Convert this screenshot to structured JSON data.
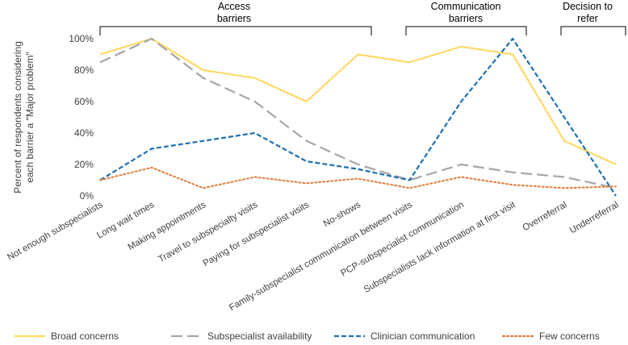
{
  "chart_data": {
    "type": "line",
    "title": "",
    "xlabel": "",
    "ylabel": "Percent of respondents considering each barrier a \"Major problem\"",
    "ylabel_lines": [
      "Percent of respondents considering",
      "each barrier a \"Major  problem\""
    ],
    "ylim": [
      0,
      100
    ],
    "yticks": [
      0,
      20,
      40,
      60,
      80,
      100
    ],
    "ytick_labels": [
      "0%",
      "20%",
      "40%",
      "60%",
      "80%",
      "100%"
    ],
    "grid": false,
    "legend_position": "bottom",
    "categories": [
      "Not enough subspecialists",
      "Long wait times",
      "Making appointments",
      "Travel to subspecialty visits",
      "Paying for subspecialist visits",
      "No-shows",
      "Family-subspecialist communication between visits",
      "PCP-subspecialist communication",
      "Subspecialists lack information at first visit",
      "Overreferral",
      "Underreferral"
    ],
    "groups": [
      {
        "label_lines": [
          "Access",
          "barriers"
        ],
        "start": 0,
        "end": 5
      },
      {
        "label_lines": [
          "Communication",
          "barriers"
        ],
        "start": 6,
        "end": 8
      },
      {
        "label_lines": [
          "Decision to",
          "refer"
        ],
        "start": 9,
        "end": 10
      }
    ],
    "series": [
      {
        "name": "Broad concerns",
        "color": "#FFD966",
        "dash": "solid",
        "values": [
          90,
          100,
          80,
          75,
          60,
          90,
          85,
          95,
          90,
          35,
          20
        ]
      },
      {
        "name": "Subspecialist availability",
        "color": "#A6A6A6",
        "dash": "longdash",
        "values": [
          85,
          100,
          75,
          60,
          35,
          20,
          10,
          20,
          15,
          12,
          5
        ]
      },
      {
        "name": "Clinician communication",
        "color": "#1F6FB2",
        "dash": "shortdash",
        "values": [
          10,
          30,
          35,
          40,
          22,
          17,
          10,
          60,
          100,
          50,
          0
        ]
      },
      {
        "name": "Few concerns",
        "color": "#E07B39",
        "dash": "dot",
        "values": [
          10,
          18,
          5,
          12,
          8,
          11,
          5,
          12,
          7,
          5,
          6
        ]
      }
    ]
  }
}
